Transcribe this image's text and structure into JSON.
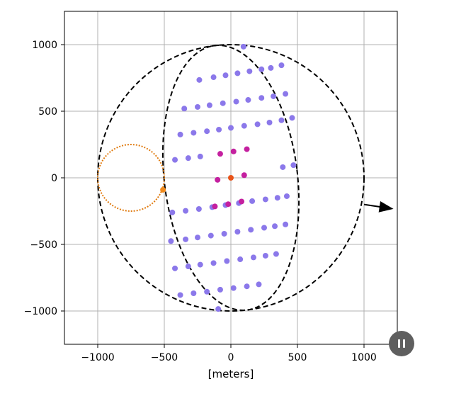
{
  "chart_data": {
    "type": "scatter",
    "title": "",
    "xlabel": "[meters]",
    "ylabel": "",
    "xlim": [
      -1250,
      1250
    ],
    "ylim": [
      -1250,
      1250
    ],
    "xticks": [
      -1000,
      -500,
      0,
      500,
      1000
    ],
    "yticks": [
      -1000,
      -500,
      0,
      500,
      1000
    ],
    "xtick_labels": [
      "−1000",
      "−500",
      "0",
      "500",
      "1000"
    ],
    "ytick_labels": [
      "−1000",
      "−500",
      "0",
      "500",
      "1000"
    ],
    "grid": true,
    "outer_circle": {
      "cx": 0,
      "cy": 0,
      "r": 1000,
      "color": "#000000",
      "style": "dashed"
    },
    "inner_ellipse": {
      "cx": 0,
      "cy": 0,
      "rx": 500,
      "ry": 1000,
      "rotation_deg": -7,
      "color": "#000000",
      "style": "dashed"
    },
    "small_circle": {
      "cx": -750,
      "cy": 0,
      "r": 250,
      "color": "#e07b10",
      "style": "dotted"
    },
    "small_circle_marker": {
      "x": -510,
      "y": -90,
      "color": "#f08a1c"
    },
    "arrow": {
      "from": [
        1000,
        -200
      ],
      "to": [
        1200,
        -230
      ],
      "color": "#000000"
    },
    "series": [
      {
        "color": "#8b78ea",
        "points": [
          [
            95,
            985
          ],
          [
            -237,
            735
          ],
          [
            -130,
            755
          ],
          [
            -40,
            770
          ],
          [
            50,
            785
          ],
          [
            140,
            800
          ],
          [
            230,
            815
          ],
          [
            300,
            825
          ],
          [
            380,
            845
          ],
          [
            -350,
            520
          ],
          [
            -250,
            532
          ],
          [
            -160,
            545
          ],
          [
            -60,
            560
          ],
          [
            40,
            572
          ],
          [
            130,
            585
          ],
          [
            230,
            600
          ],
          [
            320,
            612
          ],
          [
            410,
            630
          ],
          [
            -380,
            325
          ],
          [
            -280,
            338
          ],
          [
            -180,
            350
          ],
          [
            -90,
            362
          ],
          [
            0,
            375
          ],
          [
            100,
            390
          ],
          [
            200,
            402
          ],
          [
            290,
            415
          ],
          [
            380,
            432
          ],
          [
            460,
            450
          ],
          [
            -420,
            135
          ],
          [
            -320,
            148
          ],
          [
            -230,
            160
          ],
          [
            390,
            80
          ],
          [
            470,
            95
          ],
          [
            -440,
            -260
          ],
          [
            -340,
            -248
          ],
          [
            -240,
            -234
          ],
          [
            -140,
            -220
          ],
          [
            -40,
            -205
          ],
          [
            60,
            -190
          ],
          [
            160,
            -175
          ],
          [
            260,
            -162
          ],
          [
            350,
            -150
          ],
          [
            420,
            -138
          ],
          [
            -450,
            -475
          ],
          [
            -340,
            -462
          ],
          [
            -250,
            -448
          ],
          [
            -150,
            -434
          ],
          [
            -50,
            -420
          ],
          [
            50,
            -405
          ],
          [
            150,
            -390
          ],
          [
            250,
            -375
          ],
          [
            330,
            -363
          ],
          [
            410,
            -350
          ],
          [
            -420,
            -680
          ],
          [
            -320,
            -665
          ],
          [
            -230,
            -652
          ],
          [
            -130,
            -640
          ],
          [
            -30,
            -625
          ],
          [
            70,
            -612
          ],
          [
            170,
            -598
          ],
          [
            260,
            -585
          ],
          [
            340,
            -572
          ],
          [
            -380,
            -880
          ],
          [
            -280,
            -867
          ],
          [
            -180,
            -855
          ],
          [
            -80,
            -840
          ],
          [
            20,
            -828
          ],
          [
            120,
            -815
          ],
          [
            210,
            -800
          ],
          [
            -95,
            -985
          ]
        ]
      },
      {
        "color": "#c4209f",
        "points": [
          [
            -80,
            180
          ],
          [
            20,
            198
          ],
          [
            120,
            215
          ],
          [
            -100,
            -15
          ],
          [
            100,
            20
          ],
          [
            -120,
            -215
          ],
          [
            -20,
            -198
          ],
          [
            80,
            -178
          ]
        ]
      },
      {
        "color": "#e8541a",
        "points": [
          [
            0,
            0
          ]
        ]
      }
    ]
  },
  "controls": {
    "pause_icon": "pause-icon"
  }
}
